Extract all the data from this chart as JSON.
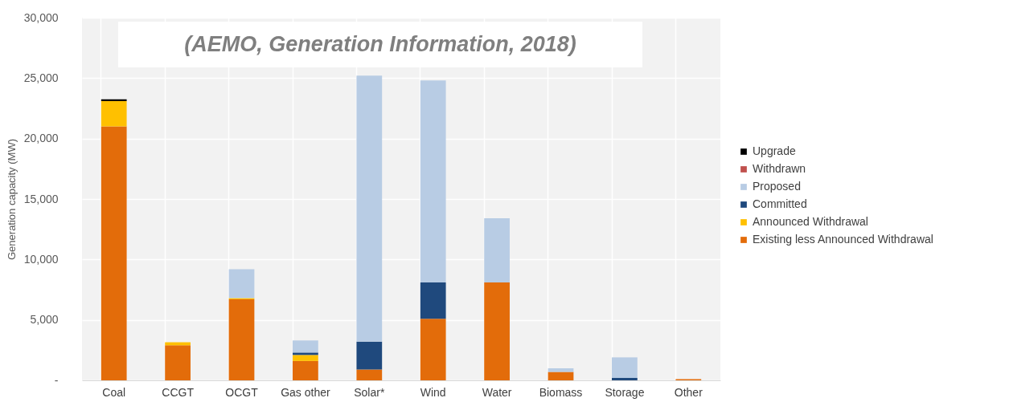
{
  "chart_data": {
    "type": "bar",
    "stacked": true,
    "ylabel": "Generation capacity (MW)",
    "annotations": [
      "(AEMO, Generation Information, 2018)"
    ],
    "categories": [
      "Coal",
      "CCGT",
      "OCGT",
      "Gas other",
      "Solar*",
      "Wind",
      "Water",
      "Biomass",
      "Storage",
      "Other"
    ],
    "series": [
      {
        "name": "Existing less Announced Withdrawal",
        "color": "#e36c0a",
        "values": [
          21000,
          2900,
          6700,
          1600,
          900,
          5100,
          8100,
          700,
          0,
          100
        ]
      },
      {
        "name": "Announced Withdrawal",
        "color": "#ffc000",
        "values": [
          2100,
          250,
          100,
          500,
          0,
          0,
          0,
          0,
          0,
          0
        ]
      },
      {
        "name": "Committed",
        "color": "#1f497d",
        "values": [
          0,
          0,
          0,
          200,
          2300,
          3000,
          0,
          0,
          200,
          0
        ]
      },
      {
        "name": "Proposed",
        "color": "#b8cce4",
        "values": [
          0,
          0,
          2400,
          1000,
          22000,
          16700,
          5300,
          300,
          1700,
          0
        ]
      },
      {
        "name": "Withdrawn",
        "color": "#c0504d",
        "values": [
          0,
          0,
          0,
          0,
          0,
          0,
          0,
          0,
          0,
          0
        ]
      },
      {
        "name": "Upgrade",
        "color": "#000000",
        "values": [
          150,
          0,
          0,
          0,
          0,
          0,
          0,
          0,
          0,
          0
        ]
      }
    ],
    "ylim": [
      0,
      30000
    ],
    "yticks": [
      {
        "value": 0,
        "label": "-"
      },
      {
        "value": 5000,
        "label": "5,000"
      },
      {
        "value": 10000,
        "label": "10,000"
      },
      {
        "value": 15000,
        "label": "15,000"
      },
      {
        "value": 20000,
        "label": "20,000"
      },
      {
        "value": 25000,
        "label": "25,000"
      },
      {
        "value": 30000,
        "label": "30,000"
      }
    ],
    "grid": true,
    "legend": "right"
  }
}
